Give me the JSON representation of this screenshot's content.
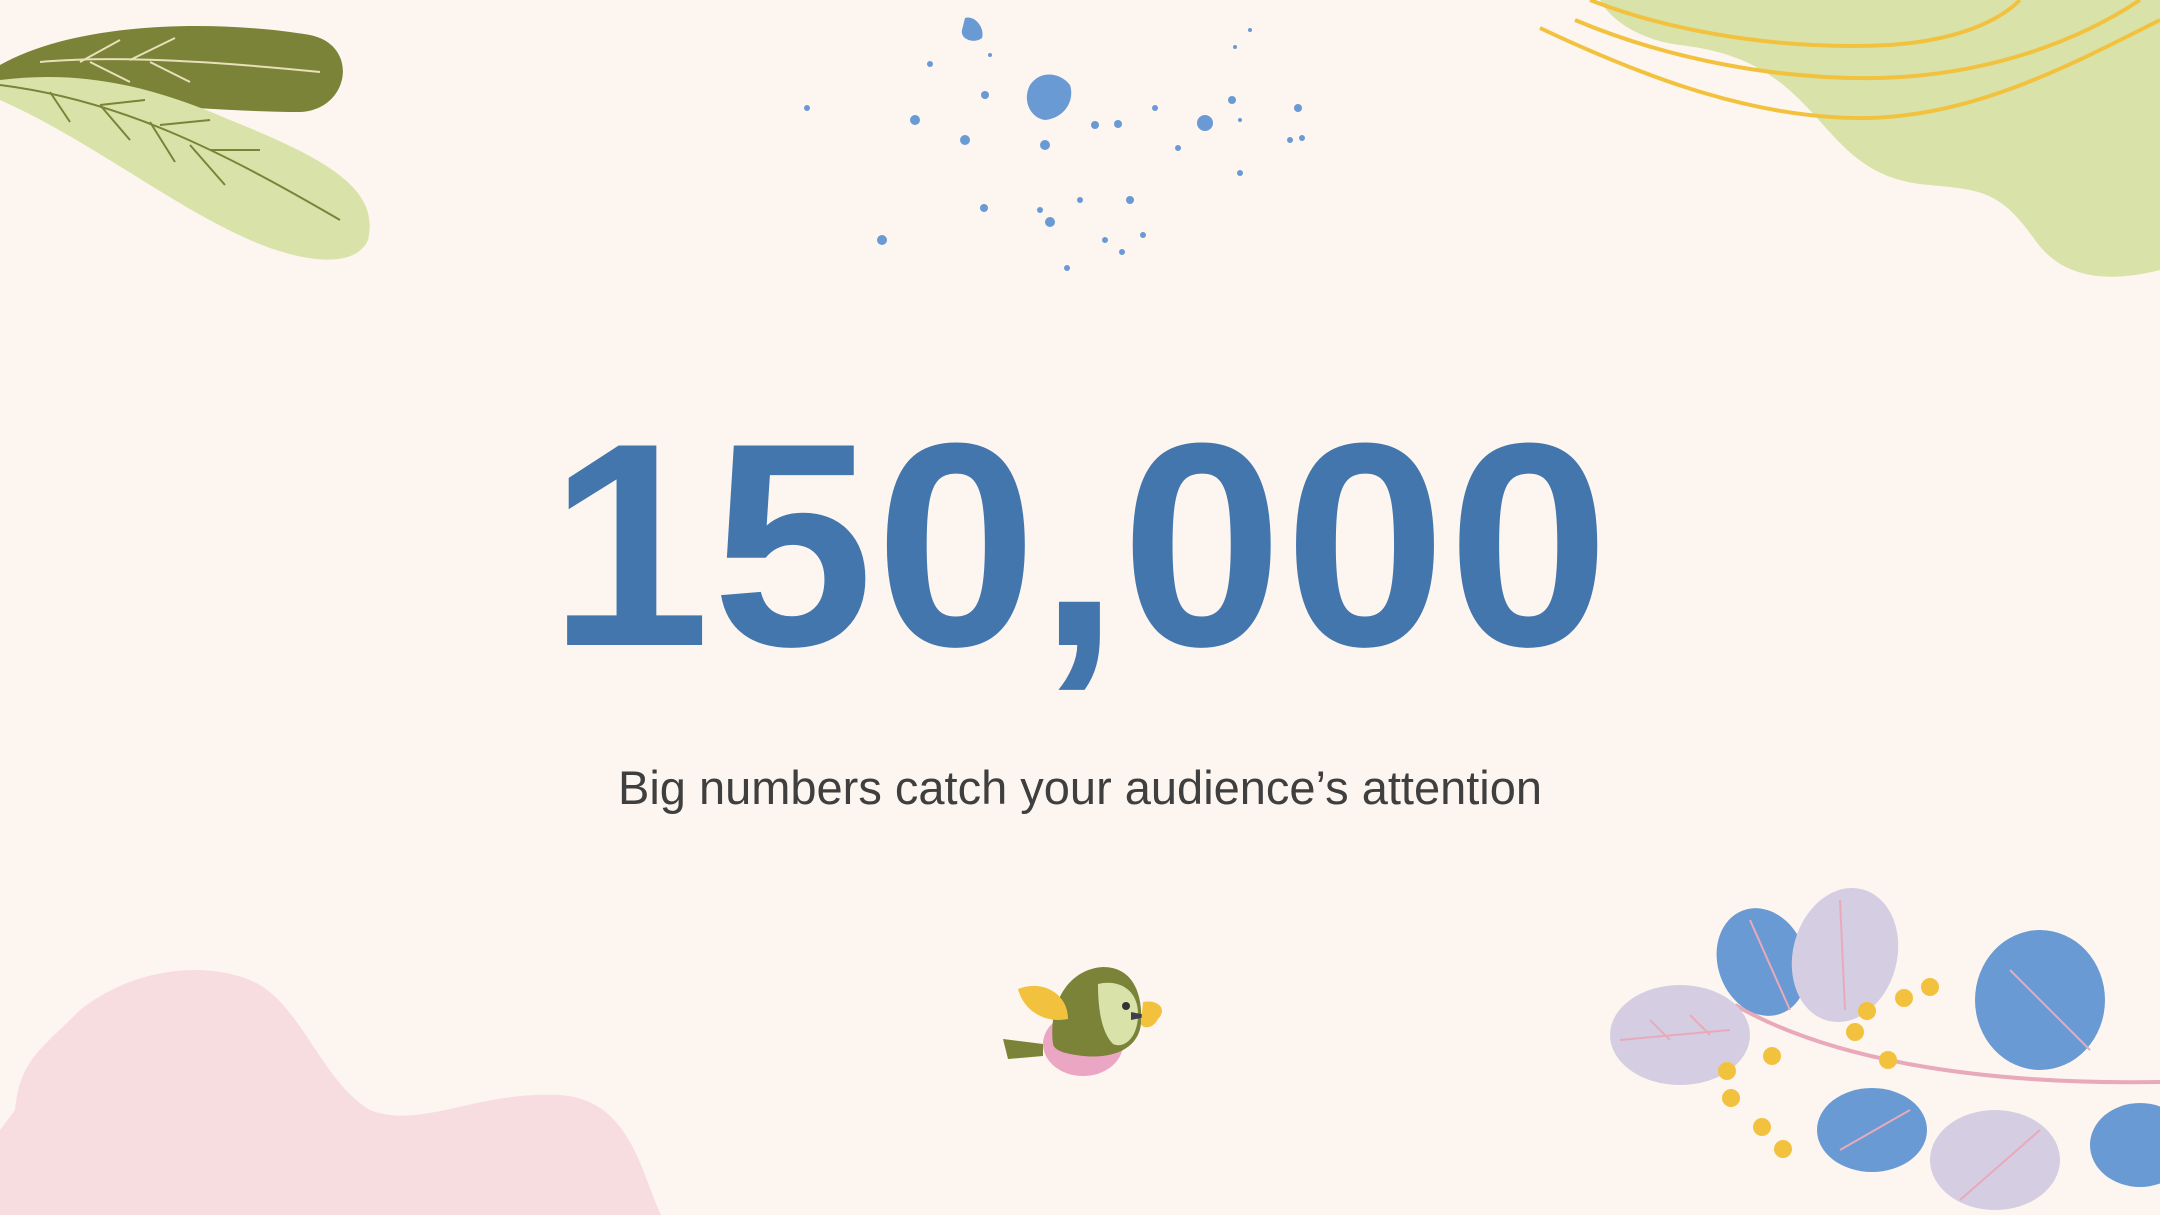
{
  "slide": {
    "headline": "150,000",
    "subtitle": "Big numbers catch your audience’s attention"
  },
  "colors": {
    "background": "#fdf6f0",
    "headline": "#4476ae",
    "subtitle": "#3f3f3f",
    "olive": "#7a8338",
    "light_green": "#d9e3a9",
    "pink": "#f8dde0",
    "yellow": "#f2c23f",
    "blue": "#6a9ad3",
    "lavender": "#d5cde2"
  },
  "icons": [
    "leaf-decoration",
    "paint-splatter",
    "green-blob",
    "pink-blob",
    "floral-branch",
    "bird-illustration"
  ]
}
